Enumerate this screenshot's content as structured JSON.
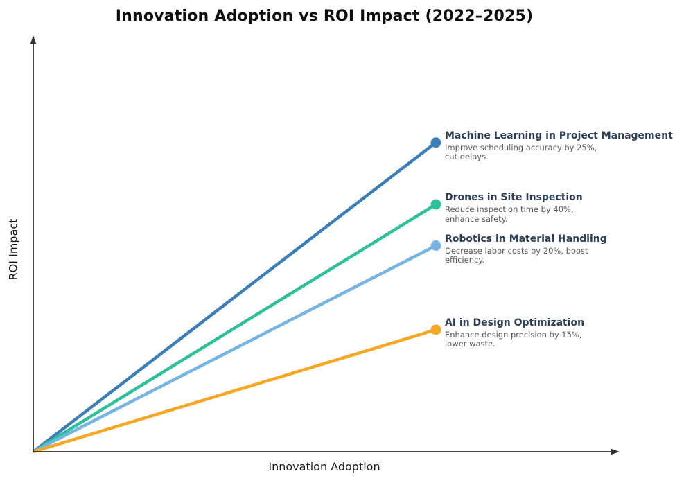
{
  "chart_data": {
    "type": "line",
    "title": "Innovation Adoption vs ROI Impact (2022–2025)",
    "xlabel": "Innovation Adoption",
    "ylabel": "ROI Impact",
    "x_range": [
      0,
      1
    ],
    "y_range": [
      0,
      1
    ],
    "grid": false,
    "axes_style": "arrow-quadrant, no ticks, no tick labels",
    "legend_position": "annotations at line endpoints, right side",
    "axis_color": "#2f2f2f",
    "name_color": "#2e4057",
    "desc_color": "#55595e",
    "series": [
      {
        "name": "Machine Learning in Project Management",
        "desc_lines": [
          "Improve scheduling accuracy by 25%,",
          "cut delays."
        ],
        "color": "#3c7eb8",
        "points": [
          [
            0,
            0
          ],
          [
            0.69,
            0.75
          ]
        ]
      },
      {
        "name": "Drones in Site Inspection",
        "desc_lines": [
          "Reduce inspection time by 40%,",
          "enhance safety."
        ],
        "color": "#2cc09b",
        "points": [
          [
            0,
            0
          ],
          [
            0.69,
            0.6
          ]
        ]
      },
      {
        "name": "Robotics in Material Handling",
        "desc_lines": [
          "Decrease labor costs by 20%, boost",
          "efficiency."
        ],
        "color": "#75b4e3",
        "points": [
          [
            0,
            0
          ],
          [
            0.69,
            0.5
          ]
        ]
      },
      {
        "name": "AI in Design Optimization",
        "desc_lines": [
          "Enhance design precision by 15%,",
          "lower waste."
        ],
        "color": "#f6a723",
        "points": [
          [
            0,
            0
          ],
          [
            0.69,
            0.296
          ]
        ]
      }
    ]
  }
}
